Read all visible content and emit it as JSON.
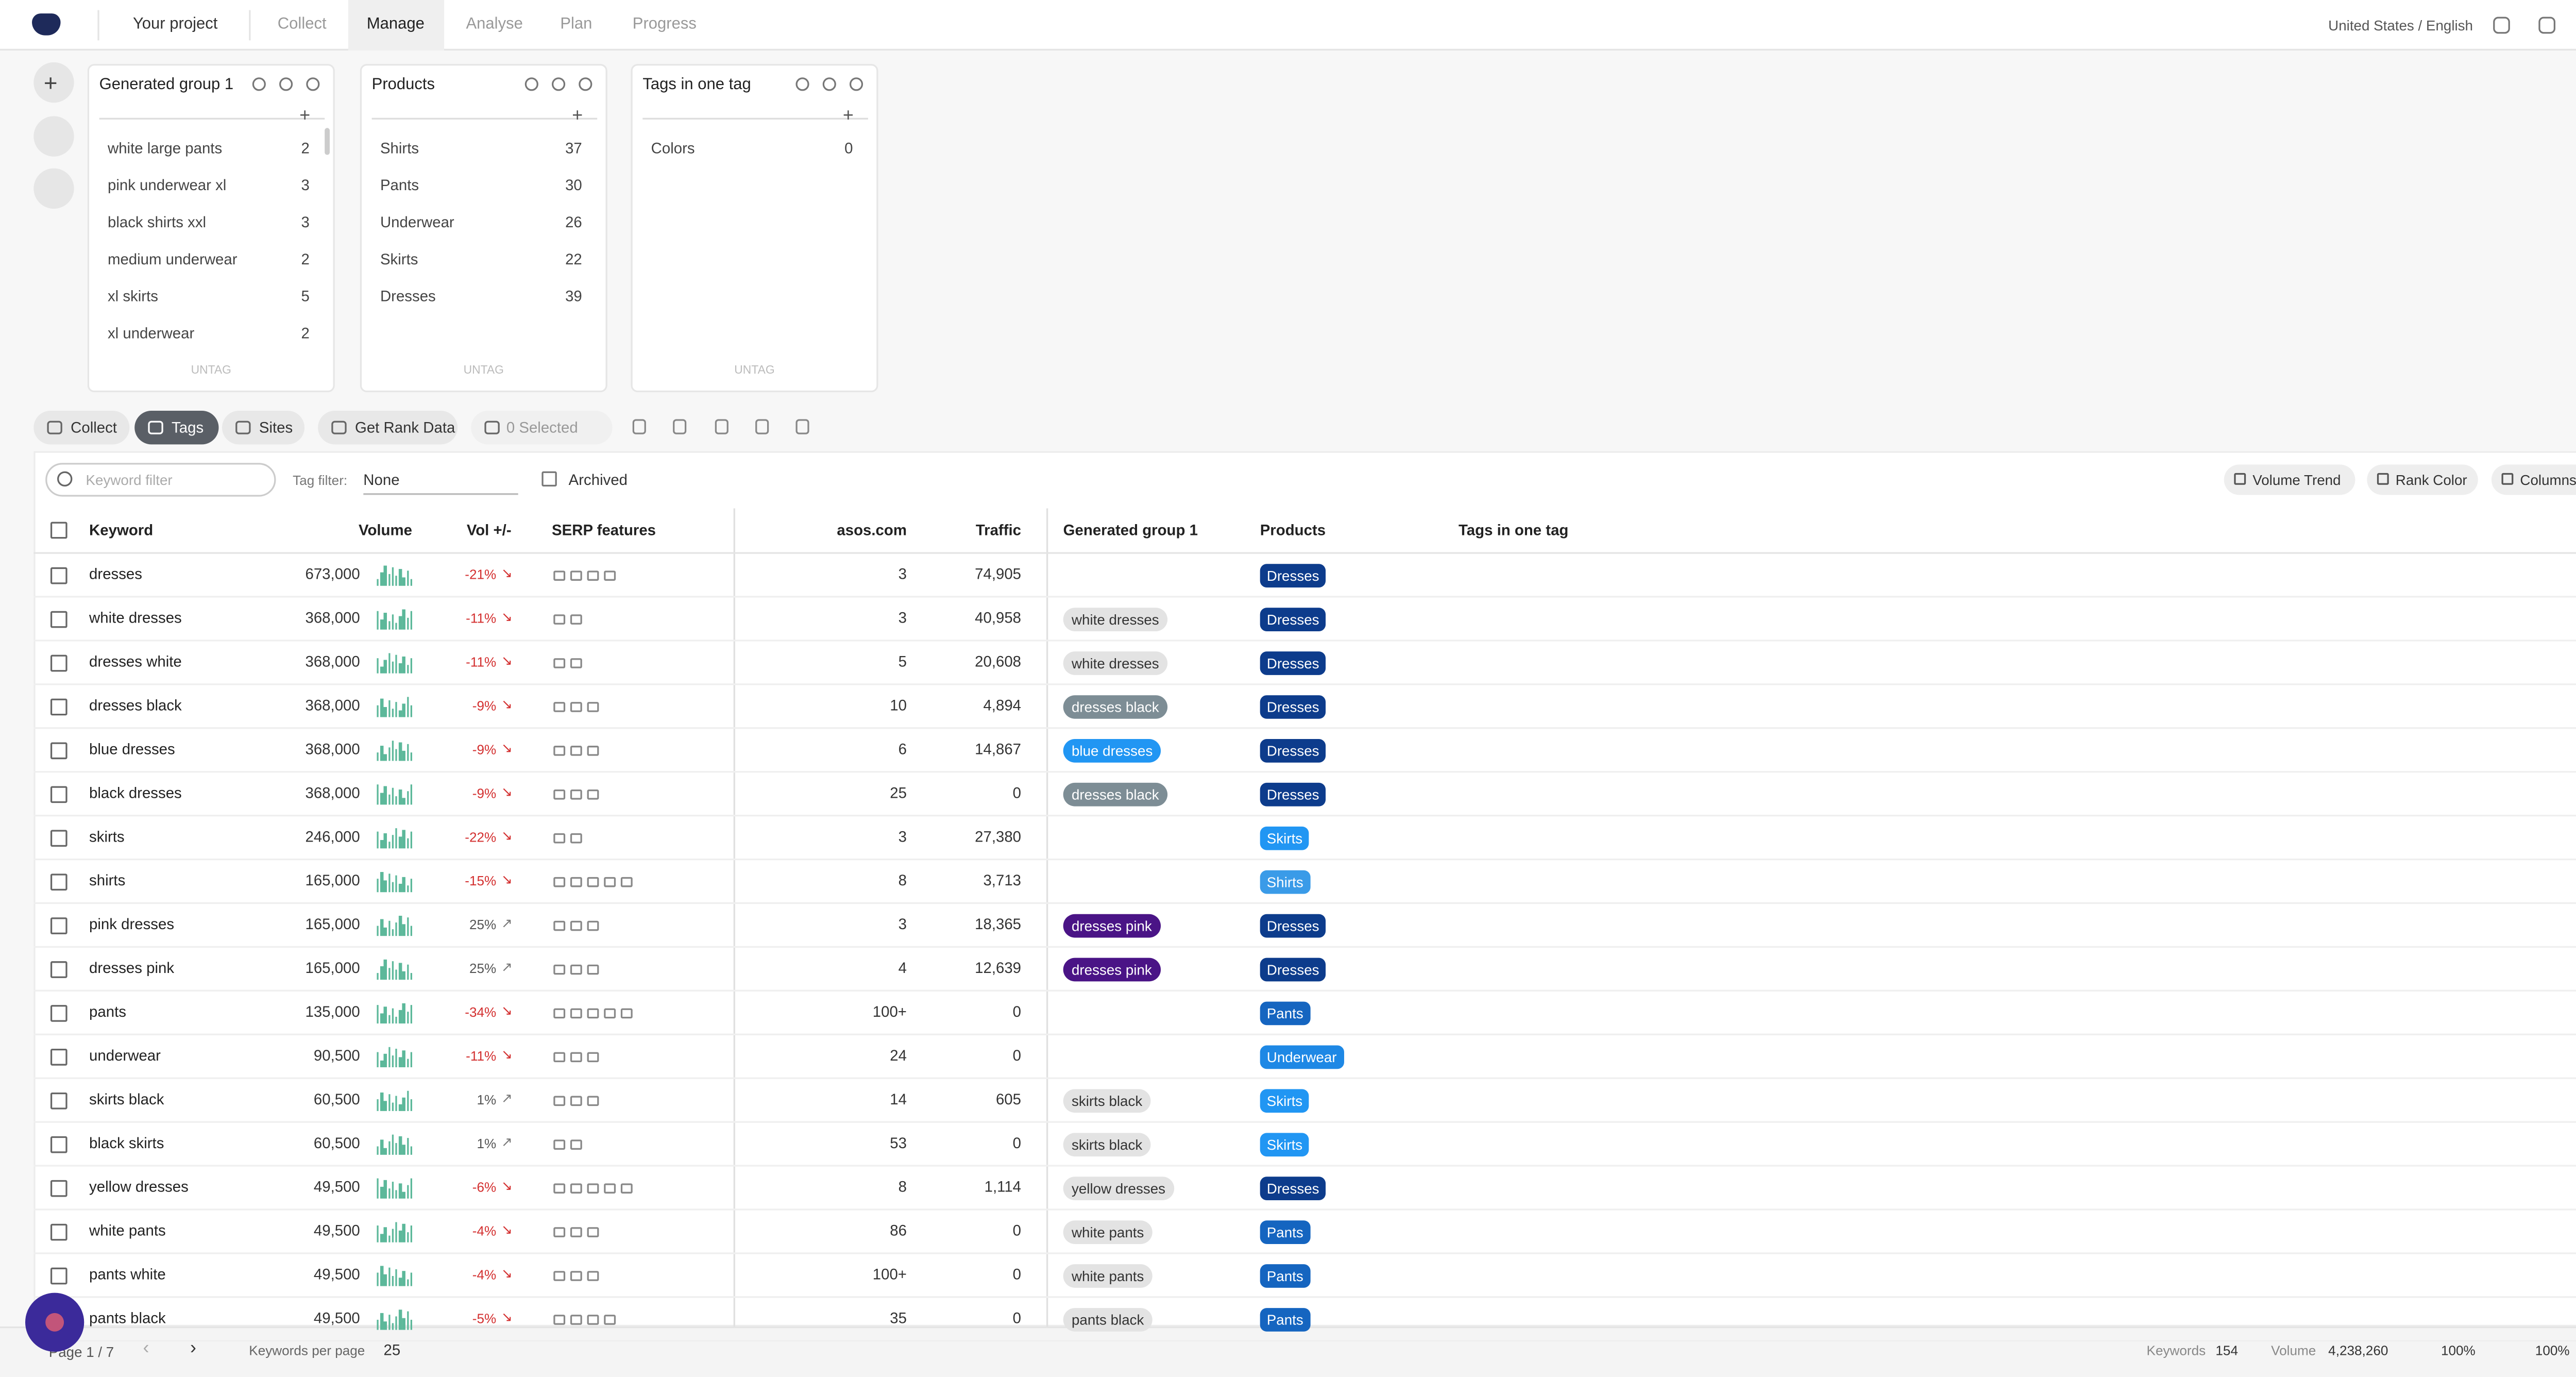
{
  "nav": {
    "items": [
      "Your project",
      "Collect",
      "Manage",
      "Analyse",
      "Plan",
      "Progress"
    ],
    "locale": "United States / English"
  },
  "groups": [
    {
      "title": "Generated group 1",
      "items": [
        {
          "label": "white large pants",
          "count": 2
        },
        {
          "label": "pink underwear xl",
          "count": 3
        },
        {
          "label": "black shirts xxl",
          "count": 3
        },
        {
          "label": "medium underwear",
          "count": 2
        },
        {
          "label": "xl skirts",
          "count": 5
        },
        {
          "label": "xl underwear",
          "count": 2
        }
      ],
      "untag": "UNTAG"
    },
    {
      "title": "Products",
      "items": [
        {
          "label": "Shirts",
          "count": 37
        },
        {
          "label": "Pants",
          "count": 30
        },
        {
          "label": "Underwear",
          "count": 26
        },
        {
          "label": "Skirts",
          "count": 22
        },
        {
          "label": "Dresses",
          "count": 39
        }
      ],
      "untag": "UNTAG"
    },
    {
      "title": "Tags in one tag",
      "items": [
        {
          "label": "Colors",
          "count": 0
        }
      ],
      "untag": "UNTAG"
    }
  ],
  "toolbar": {
    "collect": "Collect",
    "tags": "Tags",
    "sites": "Sites",
    "rank": "Get Rank Data",
    "selected": "0 Selected"
  },
  "filters": {
    "keyword_placeholder": "Keyword filter",
    "tag_filter_label": "Tag filter:",
    "tag_filter_value": "None",
    "archived": "Archived",
    "volume_trend": "Volume Trend",
    "rank_color": "Rank Color",
    "columns": "Columns"
  },
  "table": {
    "columns": [
      "Keyword",
      "Volume",
      "Vol +/-",
      "SERP features",
      "asos.com",
      "Traffic",
      "Generated group 1",
      "Products",
      "Tags in one tag"
    ],
    "rows": [
      {
        "keyword": "dresses",
        "volume": "673,000",
        "vol_change": "-21%",
        "rank": "3",
        "traffic": "74,905",
        "product": {
          "label": "Dresses",
          "color": "#0d3c8c"
        }
      },
      {
        "keyword": "white dresses",
        "volume": "368,000",
        "vol_change": "-11%",
        "rank": "3",
        "traffic": "40,958",
        "group": {
          "label": "white dresses",
          "color": "#e3e3e3",
          "text": "#333"
        },
        "product": {
          "label": "Dresses",
          "color": "#0d3c8c"
        }
      },
      {
        "keyword": "dresses white",
        "volume": "368,000",
        "vol_change": "-11%",
        "rank": "5",
        "traffic": "20,608",
        "group": {
          "label": "white dresses",
          "color": "#e3e3e3",
          "text": "#333"
        },
        "product": {
          "label": "Dresses",
          "color": "#0d3c8c"
        }
      },
      {
        "keyword": "dresses black",
        "volume": "368,000",
        "vol_change": "-9%",
        "rank": "10",
        "traffic": "4,894",
        "group": {
          "label": "dresses black",
          "color": "#7d8d95",
          "text": "#fff"
        },
        "product": {
          "label": "Dresses",
          "color": "#0d3c8c"
        }
      },
      {
        "keyword": "blue dresses",
        "volume": "368,000",
        "vol_change": "-9%",
        "rank": "6",
        "traffic": "14,867",
        "group": {
          "label": "blue dresses",
          "color": "#2196f3",
          "text": "#fff"
        },
        "product": {
          "label": "Dresses",
          "color": "#0d3c8c"
        }
      },
      {
        "keyword": "black dresses",
        "volume": "368,000",
        "vol_change": "-9%",
        "rank": "25",
        "traffic": "0",
        "group": {
          "label": "dresses black",
          "color": "#7d8d95",
          "text": "#fff"
        },
        "product": {
          "label": "Dresses",
          "color": "#0d3c8c"
        }
      },
      {
        "keyword": "skirts",
        "volume": "246,000",
        "vol_change": "-22%",
        "rank": "3",
        "traffic": "27,380",
        "product": {
          "label": "Skirts",
          "color": "#2196f3"
        }
      },
      {
        "keyword": "shirts",
        "volume": "165,000",
        "vol_change": "-15%",
        "rank": "8",
        "traffic": "3,713",
        "product": {
          "label": "Shirts",
          "color": "#3a9be8"
        }
      },
      {
        "keyword": "pink dresses",
        "volume": "165,000",
        "vol_change": "25%",
        "rank": "3",
        "traffic": "18,365",
        "group": {
          "label": "dresses pink",
          "color": "#4a1486",
          "text": "#fff"
        },
        "product": {
          "label": "Dresses",
          "color": "#0d3c8c"
        }
      },
      {
        "keyword": "dresses pink",
        "volume": "165,000",
        "vol_change": "25%",
        "rank": "4",
        "traffic": "12,639",
        "group": {
          "label": "dresses pink",
          "color": "#4a1486",
          "text": "#fff"
        },
        "product": {
          "label": "Dresses",
          "color": "#0d3c8c"
        }
      },
      {
        "keyword": "pants",
        "volume": "135,000",
        "vol_change": "-34%",
        "rank": "100+",
        "traffic": "0",
        "product": {
          "label": "Pants",
          "color": "#1565c0"
        }
      },
      {
        "keyword": "underwear",
        "volume": "90,500",
        "vol_change": "-11%",
        "rank": "24",
        "traffic": "0",
        "product": {
          "label": "Underwear",
          "color": "#1e88e5"
        }
      },
      {
        "keyword": "skirts black",
        "volume": "60,500",
        "vol_change": "1%",
        "rank": "14",
        "traffic": "605",
        "group": {
          "label": "skirts black",
          "color": "#e3e3e3",
          "text": "#333"
        },
        "product": {
          "label": "Skirts",
          "color": "#2196f3"
        }
      },
      {
        "keyword": "black skirts",
        "volume": "60,500",
        "vol_change": "1%",
        "rank": "53",
        "traffic": "0",
        "group": {
          "label": "skirts black",
          "color": "#e3e3e3",
          "text": "#333"
        },
        "product": {
          "label": "Skirts",
          "color": "#2196f3"
        }
      },
      {
        "keyword": "yellow dresses",
        "volume": "49,500",
        "vol_change": "-6%",
        "rank": "8",
        "traffic": "1,114",
        "group": {
          "label": "yellow dresses",
          "color": "#e3e3e3",
          "text": "#333"
        },
        "product": {
          "label": "Dresses",
          "color": "#0d3c8c"
        }
      },
      {
        "keyword": "white pants",
        "volume": "49,500",
        "vol_change": "-4%",
        "rank": "86",
        "traffic": "0",
        "group": {
          "label": "white pants",
          "color": "#e3e3e3",
          "text": "#333"
        },
        "product": {
          "label": "Pants",
          "color": "#1565c0"
        }
      },
      {
        "keyword": "pants white",
        "volume": "49,500",
        "vol_change": "-4%",
        "rank": "100+",
        "traffic": "0",
        "group": {
          "label": "white pants",
          "color": "#e3e3e3",
          "text": "#333"
        },
        "product": {
          "label": "Pants",
          "color": "#1565c0"
        }
      },
      {
        "keyword": "pants black",
        "volume": "49,500",
        "vol_change": "-5%",
        "rank": "35",
        "traffic": "0",
        "group": {
          "label": "pants black",
          "color": "#e3e3e3",
          "text": "#333"
        },
        "product": {
          "label": "Pants",
          "color": "#1565c0"
        }
      }
    ]
  },
  "footer": {
    "page": "Page 1 / 7",
    "per_page_label": "Keywords per page",
    "per_page": "25",
    "keywords_label": "Keywords",
    "keywords": "154",
    "volume_label": "Volume",
    "volume": "4,238,260",
    "tag_pct": "100%",
    "rank_pct": "100%"
  }
}
